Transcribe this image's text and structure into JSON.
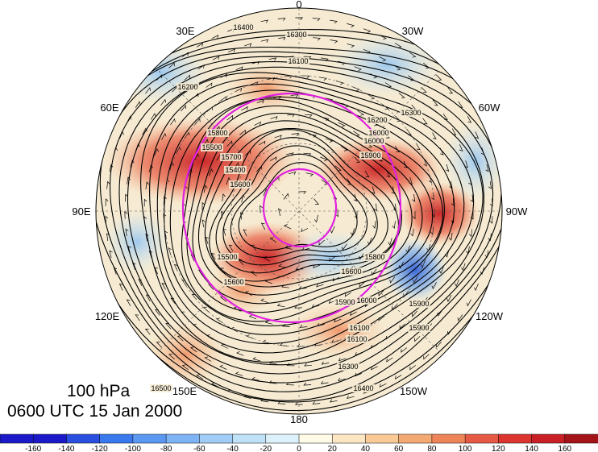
{
  "map": {
    "level": "100 hPa",
    "valid_time": "0600 UTC 15 Jan 2000",
    "projection": "north-polar-stereographic",
    "longitude_labels": [
      "0",
      "30W",
      "60W",
      "90W",
      "120W",
      "150W",
      "180",
      "150E",
      "120E",
      "90E",
      "60E",
      "30E"
    ],
    "contour_labels": [
      "16400",
      "16300",
      "16100",
      "16200",
      "16300",
      "16000",
      "15900",
      "15800",
      "15700",
      "15600",
      "15500",
      "15400",
      "15500",
      "15600",
      "15900",
      "16100",
      "16300",
      "16400",
      "16500",
      "15600",
      "15800",
      "16000",
      "16100",
      "16200",
      "16000",
      "15900",
      "15900"
    ],
    "colors": {
      "background": "#f6ebd2",
      "contour": "#000000",
      "reference_circles": "#e020e0",
      "positive": "#d7301f",
      "negative": "#2a6fdb"
    }
  },
  "colorbar": {
    "tick_labels": [
      "-160",
      "-140",
      "-120",
      "-100",
      "-80",
      "-60",
      "-40",
      "-20",
      "0",
      "20",
      "40",
      "60",
      "80",
      "100",
      "120",
      "140",
      "160"
    ],
    "colors": [
      "#1c1ac8",
      "#2a4fe0",
      "#3a78ee",
      "#5b98f2",
      "#7eb4f5",
      "#9fcdf6",
      "#bfe2f8",
      "#dcf1fa",
      "#fffbe6",
      "#fde6c4",
      "#f9ca96",
      "#f4a872",
      "#ee8558",
      "#e65a44",
      "#dc3530",
      "#c91f25",
      "#a31318"
    ]
  }
}
